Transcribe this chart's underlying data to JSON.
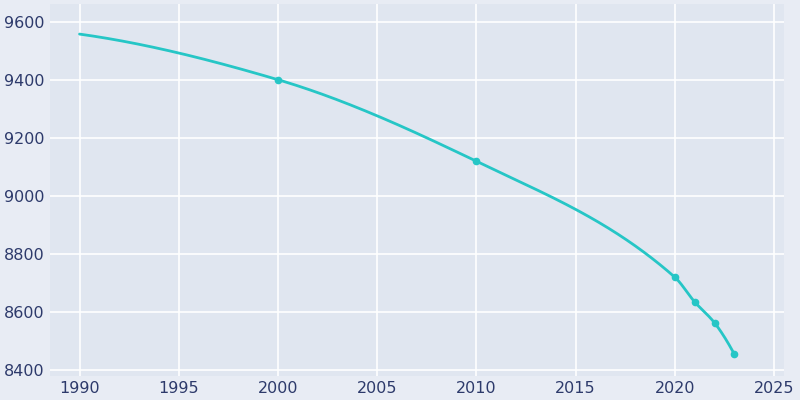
{
  "data_points": [
    [
      1990,
      9557
    ],
    [
      2000,
      9400
    ],
    [
      2010,
      9119
    ],
    [
      2020,
      8720
    ],
    [
      2021,
      8635
    ],
    [
      2022,
      8563
    ],
    [
      2023,
      8455
    ]
  ],
  "line_color": "#26C6C6",
  "marker_color": "#26C6C6",
  "bg_color": "#E8ECF4",
  "plot_bg_color": "#E0E6F0",
  "grid_color": "#FFFFFF",
  "xlim": [
    1988.5,
    2025.5
  ],
  "ylim": [
    8380,
    9660
  ],
  "yticks": [
    8400,
    8600,
    8800,
    9000,
    9200,
    9400,
    9600
  ],
  "xticks": [
    1990,
    1995,
    2000,
    2005,
    2010,
    2015,
    2020,
    2025
  ],
  "tick_color": "#2D3A6B",
  "tick_fontsize": 11.5
}
